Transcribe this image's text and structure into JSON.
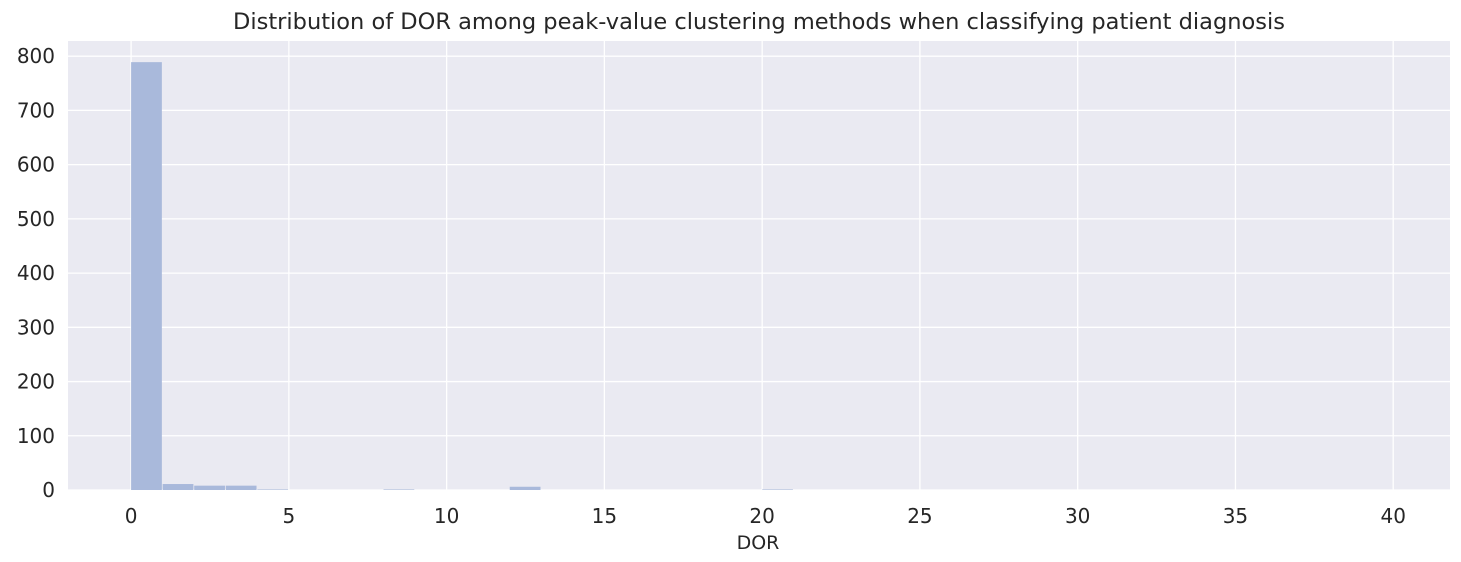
{
  "chart_data": {
    "type": "bar",
    "title": "Distribution of DOR among peak-value clustering methods when classifying patient diagnosis",
    "xlabel": "DOR",
    "ylabel": "",
    "xlim": [
      -2,
      41.8
    ],
    "ylim": [
      0,
      828
    ],
    "x_ticks": [
      0,
      5,
      10,
      15,
      20,
      25,
      30,
      35,
      40
    ],
    "y_ticks": [
      0,
      100,
      200,
      300,
      400,
      500,
      600,
      700,
      800
    ],
    "grid": true,
    "legend": "none",
    "bin_width": 1,
    "bins": [
      {
        "x0": 0,
        "x1": 1,
        "count": 789
      },
      {
        "x0": 1,
        "x1": 2,
        "count": 11
      },
      {
        "x0": 2,
        "x1": 3,
        "count": 8
      },
      {
        "x0": 3,
        "x1": 4,
        "count": 8
      },
      {
        "x0": 4,
        "x1": 5,
        "count": 1
      },
      {
        "x0": 8,
        "x1": 9,
        "count": 1
      },
      {
        "x0": 12,
        "x1": 13,
        "count": 6
      },
      {
        "x0": 20,
        "x1": 21,
        "count": 1
      }
    ],
    "colors": {
      "background": "#eaeaf2",
      "bar": "#a9b9db",
      "grid": "#ffffff",
      "text": "#262626"
    }
  }
}
